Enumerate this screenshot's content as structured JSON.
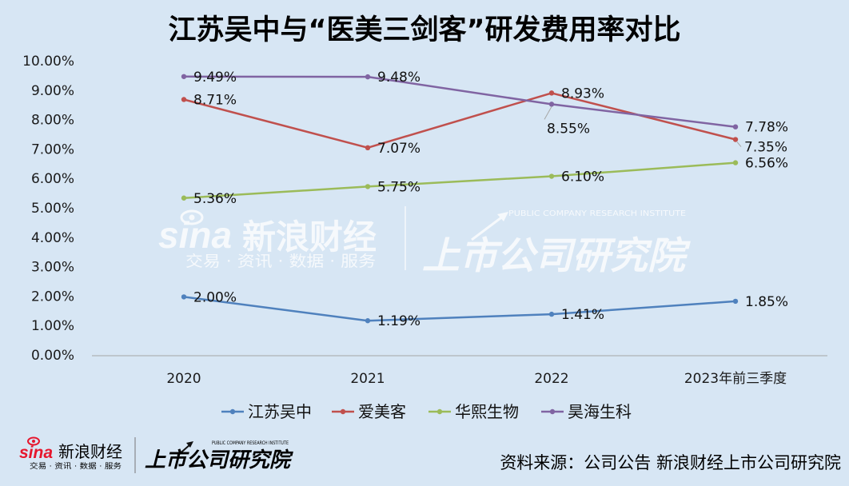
{
  "colors": {
    "background": "#d7e6f4",
    "axis": "#a6a6a6",
    "leader_line": "#a6a6a6",
    "sina_red": "#e6162d",
    "watermark": "#ffffff"
  },
  "chart_data": {
    "type": "line",
    "title": "江苏吴中与“医美三剑客”研发费用率对比",
    "xlabel": "",
    "ylabel": "",
    "categories": [
      "2020",
      "2021",
      "2022",
      "2023年前三季度"
    ],
    "ylim": [
      0,
      10
    ],
    "yticks": [
      0,
      1,
      2,
      3,
      4,
      5,
      6,
      7,
      8,
      9,
      10
    ],
    "ytick_labels": [
      "0.00%",
      "1.00%",
      "2.00%",
      "3.00%",
      "4.00%",
      "5.00%",
      "6.00%",
      "7.00%",
      "8.00%",
      "9.00%",
      "10.00%"
    ],
    "grid": false,
    "legend": "bottom",
    "series": [
      {
        "name": "江苏吴中",
        "color": "#4f81bd",
        "values": [
          2.0,
          1.19,
          1.41,
          1.85
        ],
        "labels": [
          "2.00%",
          "1.19%",
          "1.41%",
          "1.85%"
        ]
      },
      {
        "name": "爱美客",
        "color": "#c0504d",
        "values": [
          8.71,
          7.07,
          8.93,
          7.35
        ],
        "labels": [
          "8.71%",
          "7.07%",
          "8.93%",
          "7.35%"
        ]
      },
      {
        "name": "华熙生物",
        "color": "#9bbb59",
        "values": [
          5.36,
          5.75,
          6.1,
          6.56
        ],
        "labels": [
          "5.36%",
          "5.75%",
          "6.10%",
          "6.56%"
        ]
      },
      {
        "name": "昊海生科",
        "color": "#8064a2",
        "values": [
          9.49,
          9.48,
          8.55,
          7.78
        ],
        "labels": [
          "9.49%",
          "9.48%",
          "8.55%",
          "7.78%"
        ]
      }
    ]
  },
  "watermark": {
    "sina": "sina",
    "brand": "新浪财经",
    "tagline": "交易 · 资讯 · 数据 · 服务",
    "institute": "上市公司研究院",
    "institute_en": "PUBLIC COMPANY RESEARCH INSTITUTE"
  },
  "footer": {
    "sina": "sina",
    "brand": "新浪财经",
    "tagline": "交易 · 资讯 · 数据 · 服务",
    "institute": "上市公司研究院",
    "institute_en": "PUBLIC COMPANY RESEARCH INSTITUTE",
    "source": "资料来源：公司公告 新浪财经上市公司研究院"
  }
}
